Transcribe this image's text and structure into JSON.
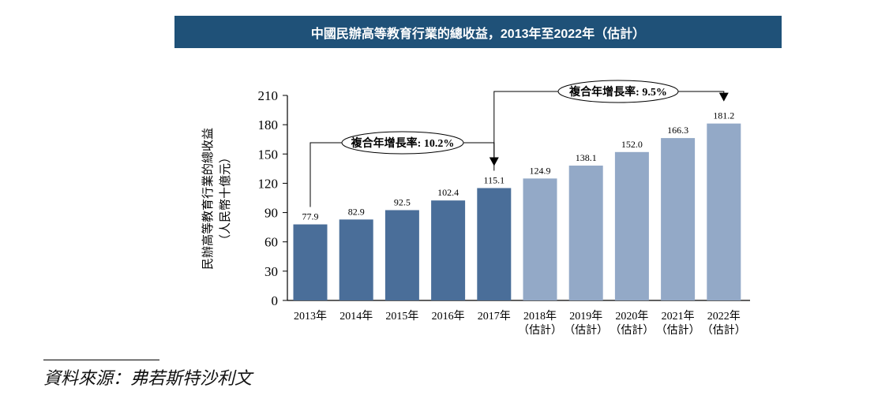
{
  "chart_data": {
    "type": "bar",
    "title": "中國民辦高等教育行業的總收益，2013年至2022年（估計）",
    "ylabel": "民辦高等教育行業的總收益",
    "ylabel_unit": "（人民幣十億元）",
    "ylim": [
      0,
      210
    ],
    "yticks": [
      0,
      30,
      60,
      90,
      120,
      150,
      180,
      210
    ],
    "categories": [
      "2013年",
      "2014年",
      "2015年",
      "2016年",
      "2017年",
      "2018年",
      "2019年",
      "2020年",
      "2021年",
      "2022年"
    ],
    "category_sublabels": [
      "",
      "",
      "",
      "",
      "",
      "（估計）",
      "（估計）",
      "（估計）",
      "（估計）",
      "（估計）"
    ],
    "values": [
      77.9,
      82.9,
      92.5,
      102.4,
      115.1,
      124.9,
      138.1,
      152.0,
      166.3,
      181.2
    ],
    "value_labels": [
      "77.9",
      "82.9",
      "92.5",
      "102.4",
      "115.1",
      "124.9",
      "138.1",
      "152.0",
      "166.3",
      "181.2"
    ],
    "estimated": [
      false,
      false,
      false,
      false,
      false,
      true,
      true,
      true,
      true,
      true
    ],
    "colors": {
      "actual": "#4a6e99",
      "estimated": "#93a9c7",
      "title_bg": "#1f5178"
    },
    "annotations": [
      {
        "label": "複合年增長率: 10.2%",
        "from": "2013年",
        "to": "2017年"
      },
      {
        "label": "複合年增長率: 9.5%",
        "from": "2017年",
        "to": "2022年"
      }
    ],
    "grid": false
  },
  "source": "資料來源：弗若斯特沙利文"
}
